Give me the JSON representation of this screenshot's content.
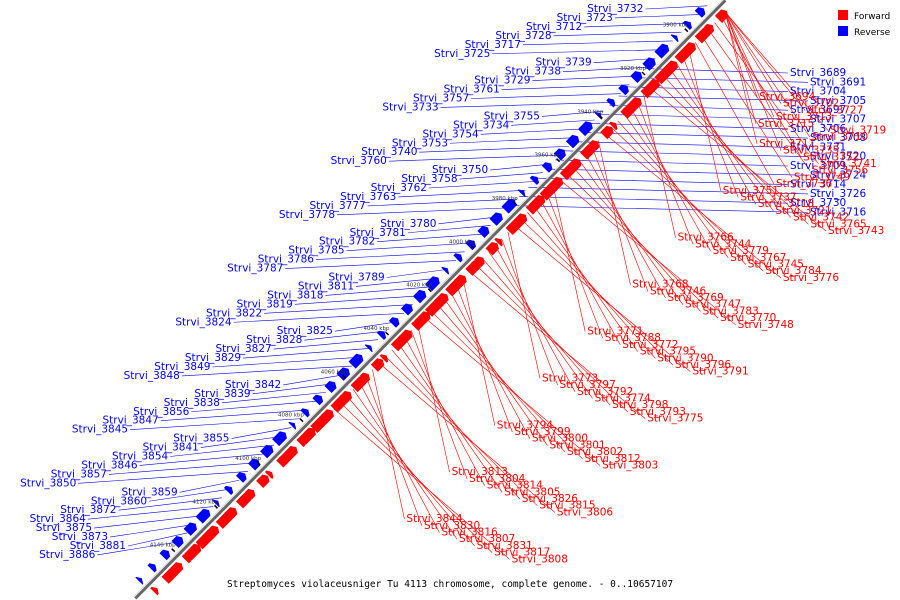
{
  "title": "Streptomyces violaceusniger Tu 4113 chromosome, complete genome. - 0..10657107",
  "legend": [
    {
      "label": "Forward",
      "color": "#ff0000"
    },
    {
      "label": "Reverse",
      "color": "#0000ff"
    }
  ],
  "ticks": [
    "3900 kbp",
    "3920 kbp",
    "3940 kbp",
    "3960 kbp",
    "3980 kbp",
    "4000 kbp",
    "4020 kbp",
    "4040 kbp",
    "4060 kbp",
    "4080 kbp",
    "4100 kbp",
    "4120 kbp",
    "4140 kbp"
  ],
  "reverse_genes": [
    "Strvi_3732",
    "Strvi_3723",
    "Strvi_3712",
    "Strvi_3728",
    "Strvi_3717",
    "Strvi_3725",
    "Strvi_3739",
    "Strvi_3738",
    "Strvi_3729",
    "Strvi_3761",
    "Strvi_3757",
    "Strvi_3733",
    "Strvi_3755",
    "Strvi_3734",
    "Strvi_3754",
    "Strvi_3753",
    "Strvi_3740",
    "Strvi_3760",
    "Strvi_3750",
    "Strvi_3758",
    "Strvi_3762",
    "Strvi_3763",
    "Strvi_3777",
    "Strvi_3778",
    "Strvi_3780",
    "Strvi_3781",
    "Strvi_3782",
    "Strvi_3785",
    "Strvi_3786",
    "Strvi_3787",
    "Strvi_3789",
    "Strvi_3811",
    "Strvi_3818",
    "Strvi_3819",
    "Strvi_3822",
    "Strvi_3824",
    "Strvi_3825",
    "Strvi_3828",
    "Strvi_3827",
    "Strvi_3829",
    "Strvi_3849",
    "Strvi_3848",
    "Strvi_3842",
    "Strvi_3839",
    "Strvi_3838",
    "Strvi_3856",
    "Strvi_3847",
    "Strvi_3845",
    "Strvi_3855",
    "Strvi_3841",
    "Strvi_3854",
    "Strvi_3846",
    "Strvi_3857",
    "Strvi_3850",
    "Strvi_3859",
    "Strvi_3860",
    "Strvi_3872",
    "Strvi_3864",
    "Strvi_3875",
    "Strvi_3873",
    "Strvi_3881",
    "Strvi_3886",
    "Strvi_3689",
    "Strvi_3691",
    "Strvi_3704",
    "Strvi_3705",
    "Strvi_3697",
    "Strvi_3707",
    "Strvi_3706",
    "Strvi_3708",
    "Strvi_3731",
    "Strvi_3720",
    "Strvi_3709",
    "Strvi_3724",
    "Strvi_3714",
    "Strvi_3726",
    "Strvi_3730",
    "Strvi_3716"
  ],
  "forward_genes": [
    "Strvi_3694",
    "Strvi_3702",
    "Strvi_3727",
    "Strvi_3713",
    "Strvi_3715",
    "Strvi_3719",
    "Strvi_3710",
    "Strvi_3711",
    "Strvi_3735",
    "Strvi_3752",
    "Strvi_3741",
    "Strvi_3756",
    "Strvi_3749",
    "Strvi_3736",
    "Strvi_3751",
    "Strvi_3737",
    "Strvi_3718",
    "Strvi_3721",
    "Strvi_3742",
    "Strvi_3765",
    "Strvi_3743",
    "Strvi_3766",
    "Strvi_3744",
    "Strvi_3779",
    "Strvi_3767",
    "Strvi_3745",
    "Strvi_3784",
    "Strvi_3776",
    "Strvi_3768",
    "Strvi_3746",
    "Strvi_3769",
    "Strvi_3747",
    "Strvi_3783",
    "Strvi_3770",
    "Strvi_3748",
    "Strvi_3771",
    "Strvi_3788",
    "Strvi_3772",
    "Strvi_3795",
    "Strvi_3790",
    "Strvi_3796",
    "Strvi_3791",
    "Strvi_3773",
    "Strvi_3797",
    "Strvi_3792",
    "Strvi_3774",
    "Strvi_3798",
    "Strvi_3793",
    "Strvi_3775",
    "Strvi_3794",
    "Strvi_3799",
    "Strvi_3800",
    "Strvi_3801",
    "Strvi_3802",
    "Strvi_3812",
    "Strvi_3803",
    "Strvi_3813",
    "Strvi_3804",
    "Strvi_3814",
    "Strvi_3805",
    "Strvi_3826",
    "Strvi_3815",
    "Strvi_3806",
    "Strvi_3844",
    "Strvi_3830",
    "Strvi_3816",
    "Strvi_3807",
    "Strvi_3831",
    "Strvi_3817",
    "Strvi_3808"
  ]
}
